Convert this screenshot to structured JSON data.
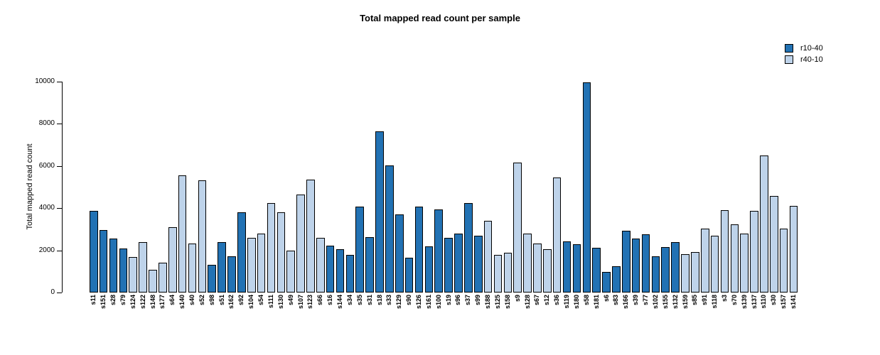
{
  "chart_data": {
    "type": "bar",
    "title": "Total mapped read count per sample",
    "xlabel": "",
    "ylabel": "Total mapped read count",
    "ylim": [
      0,
      10000
    ],
    "yticks": [
      0,
      2000,
      4000,
      6000,
      8000,
      10000
    ],
    "grid": false,
    "legend_position": "top-right",
    "legend": [
      {
        "name": "r10-40",
        "color": "#2272b4"
      },
      {
        "name": "r40-10",
        "color": "#bed3ea"
      }
    ],
    "samples": [
      {
        "label": "s11",
        "value": 3860,
        "group": "r10-40"
      },
      {
        "label": "s151",
        "value": 2950,
        "group": "r10-40"
      },
      {
        "label": "s28",
        "value": 2550,
        "group": "r10-40"
      },
      {
        "label": "s79",
        "value": 2090,
        "group": "r10-40"
      },
      {
        "label": "s124",
        "value": 1690,
        "group": "r40-10"
      },
      {
        "label": "s122",
        "value": 2390,
        "group": "r40-10"
      },
      {
        "label": "s148",
        "value": 1070,
        "group": "r40-10"
      },
      {
        "label": "s177",
        "value": 1410,
        "group": "r40-10"
      },
      {
        "label": "s64",
        "value": 3090,
        "group": "r40-10"
      },
      {
        "label": "s140",
        "value": 5570,
        "group": "r40-10"
      },
      {
        "label": "s40",
        "value": 2320,
        "group": "r40-10"
      },
      {
        "label": "s52",
        "value": 5320,
        "group": "r40-10"
      },
      {
        "label": "s98",
        "value": 1320,
        "group": "r10-40"
      },
      {
        "label": "s51",
        "value": 2400,
        "group": "r10-40"
      },
      {
        "label": "s162",
        "value": 1730,
        "group": "r10-40"
      },
      {
        "label": "s92",
        "value": 3820,
        "group": "r10-40"
      },
      {
        "label": "s104",
        "value": 2600,
        "group": "r40-10"
      },
      {
        "label": "s54",
        "value": 2790,
        "group": "r40-10"
      },
      {
        "label": "s111",
        "value": 4250,
        "group": "r40-10"
      },
      {
        "label": "s130",
        "value": 3790,
        "group": "r40-10"
      },
      {
        "label": "s49",
        "value": 1970,
        "group": "r40-10"
      },
      {
        "label": "s107",
        "value": 4640,
        "group": "r40-10"
      },
      {
        "label": "s123",
        "value": 5360,
        "group": "r40-10"
      },
      {
        "label": "s66",
        "value": 2600,
        "group": "r40-10"
      },
      {
        "label": "s16",
        "value": 2220,
        "group": "r10-40"
      },
      {
        "label": "s144",
        "value": 2060,
        "group": "r10-40"
      },
      {
        "label": "s34",
        "value": 1800,
        "group": "r10-40"
      },
      {
        "label": "s35",
        "value": 4070,
        "group": "r10-40"
      },
      {
        "label": "s31",
        "value": 2640,
        "group": "r10-40"
      },
      {
        "label": "s18",
        "value": 7650,
        "group": "r10-40"
      },
      {
        "label": "s33",
        "value": 6020,
        "group": "r10-40"
      },
      {
        "label": "s129",
        "value": 3690,
        "group": "r10-40"
      },
      {
        "label": "s90",
        "value": 1650,
        "group": "r10-40"
      },
      {
        "label": "s126",
        "value": 4070,
        "group": "r10-40"
      },
      {
        "label": "s161",
        "value": 2190,
        "group": "r10-40"
      },
      {
        "label": "s100",
        "value": 3950,
        "group": "r10-40"
      },
      {
        "label": "s19",
        "value": 2600,
        "group": "r10-40"
      },
      {
        "label": "s96",
        "value": 2800,
        "group": "r10-40"
      },
      {
        "label": "s37",
        "value": 4240,
        "group": "r10-40"
      },
      {
        "label": "s99",
        "value": 2710,
        "group": "r10-40"
      },
      {
        "label": "s188",
        "value": 3410,
        "group": "r40-10"
      },
      {
        "label": "s125",
        "value": 1800,
        "group": "r40-10"
      },
      {
        "label": "s158",
        "value": 1880,
        "group": "r40-10"
      },
      {
        "label": "s9",
        "value": 6150,
        "group": "r40-10"
      },
      {
        "label": "s128",
        "value": 2800,
        "group": "r40-10"
      },
      {
        "label": "s67",
        "value": 2330,
        "group": "r40-10"
      },
      {
        "label": "s12",
        "value": 2060,
        "group": "r40-10"
      },
      {
        "label": "s36",
        "value": 5450,
        "group": "r40-10"
      },
      {
        "label": "s119",
        "value": 2440,
        "group": "r10-40"
      },
      {
        "label": "s180",
        "value": 2290,
        "group": "r10-40"
      },
      {
        "label": "s58",
        "value": 9950,
        "group": "r10-40"
      },
      {
        "label": "s181",
        "value": 2120,
        "group": "r10-40"
      },
      {
        "label": "s6",
        "value": 990,
        "group": "r10-40"
      },
      {
        "label": "s83",
        "value": 1230,
        "group": "r10-40"
      },
      {
        "label": "s166",
        "value": 2930,
        "group": "r10-40"
      },
      {
        "label": "s39",
        "value": 2560,
        "group": "r10-40"
      },
      {
        "label": "s77",
        "value": 2760,
        "group": "r10-40"
      },
      {
        "label": "s102",
        "value": 1730,
        "group": "r10-40"
      },
      {
        "label": "s155",
        "value": 2140,
        "group": "r10-40"
      },
      {
        "label": "s132",
        "value": 2390,
        "group": "r10-40"
      },
      {
        "label": "s159",
        "value": 1820,
        "group": "r40-10"
      },
      {
        "label": "s85",
        "value": 1910,
        "group": "r40-10"
      },
      {
        "label": "s91",
        "value": 3020,
        "group": "r40-10"
      },
      {
        "label": "s118",
        "value": 2680,
        "group": "r40-10"
      },
      {
        "label": "s3",
        "value": 3910,
        "group": "r40-10"
      },
      {
        "label": "s70",
        "value": 3220,
        "group": "r40-10"
      },
      {
        "label": "s139",
        "value": 2780,
        "group": "r40-10"
      },
      {
        "label": "s137",
        "value": 3880,
        "group": "r40-10"
      },
      {
        "label": "s110",
        "value": 6490,
        "group": "r40-10"
      },
      {
        "label": "s30",
        "value": 4580,
        "group": "r40-10"
      },
      {
        "label": "s157",
        "value": 3020,
        "group": "r40-10"
      },
      {
        "label": "s141",
        "value": 4100,
        "group": "r40-10"
      }
    ]
  }
}
